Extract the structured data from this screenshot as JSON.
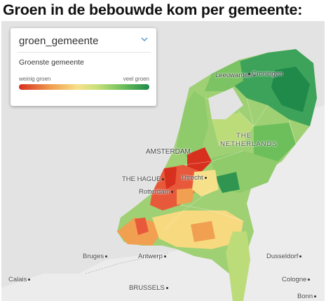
{
  "title": "Groen in de bebouwde kom per gemeente:",
  "control": {
    "selected_layer": "groen_gemeente",
    "chevron_icon": "chevron-down-icon"
  },
  "legend": {
    "title": "Groenste gemeente",
    "low_label": "weinig groen",
    "high_label": "veel groen",
    "colors": [
      "#d7301f",
      "#f0a050",
      "#f7e08a",
      "#c7e07a",
      "#6cbf5a",
      "#1f8a4a"
    ]
  },
  "map_labels": {
    "leeuwarden": "Leeuwarden",
    "groningen": "Groningen",
    "country_line1": "THE",
    "country_line2": "NETHERLANDS",
    "amsterdam": "AMSTERDAM",
    "the_hague": "THE HAGUE",
    "utrecht": "Utrecht",
    "rotterdam": "Rotterdam",
    "bruges": "Bruges",
    "antwerp": "Antwerp",
    "dusseldorf": "Dusseldorf",
    "calais": "Calais",
    "brussels": "BRUSSELS",
    "cologne": "Cologne",
    "bonn": "Bonn"
  }
}
